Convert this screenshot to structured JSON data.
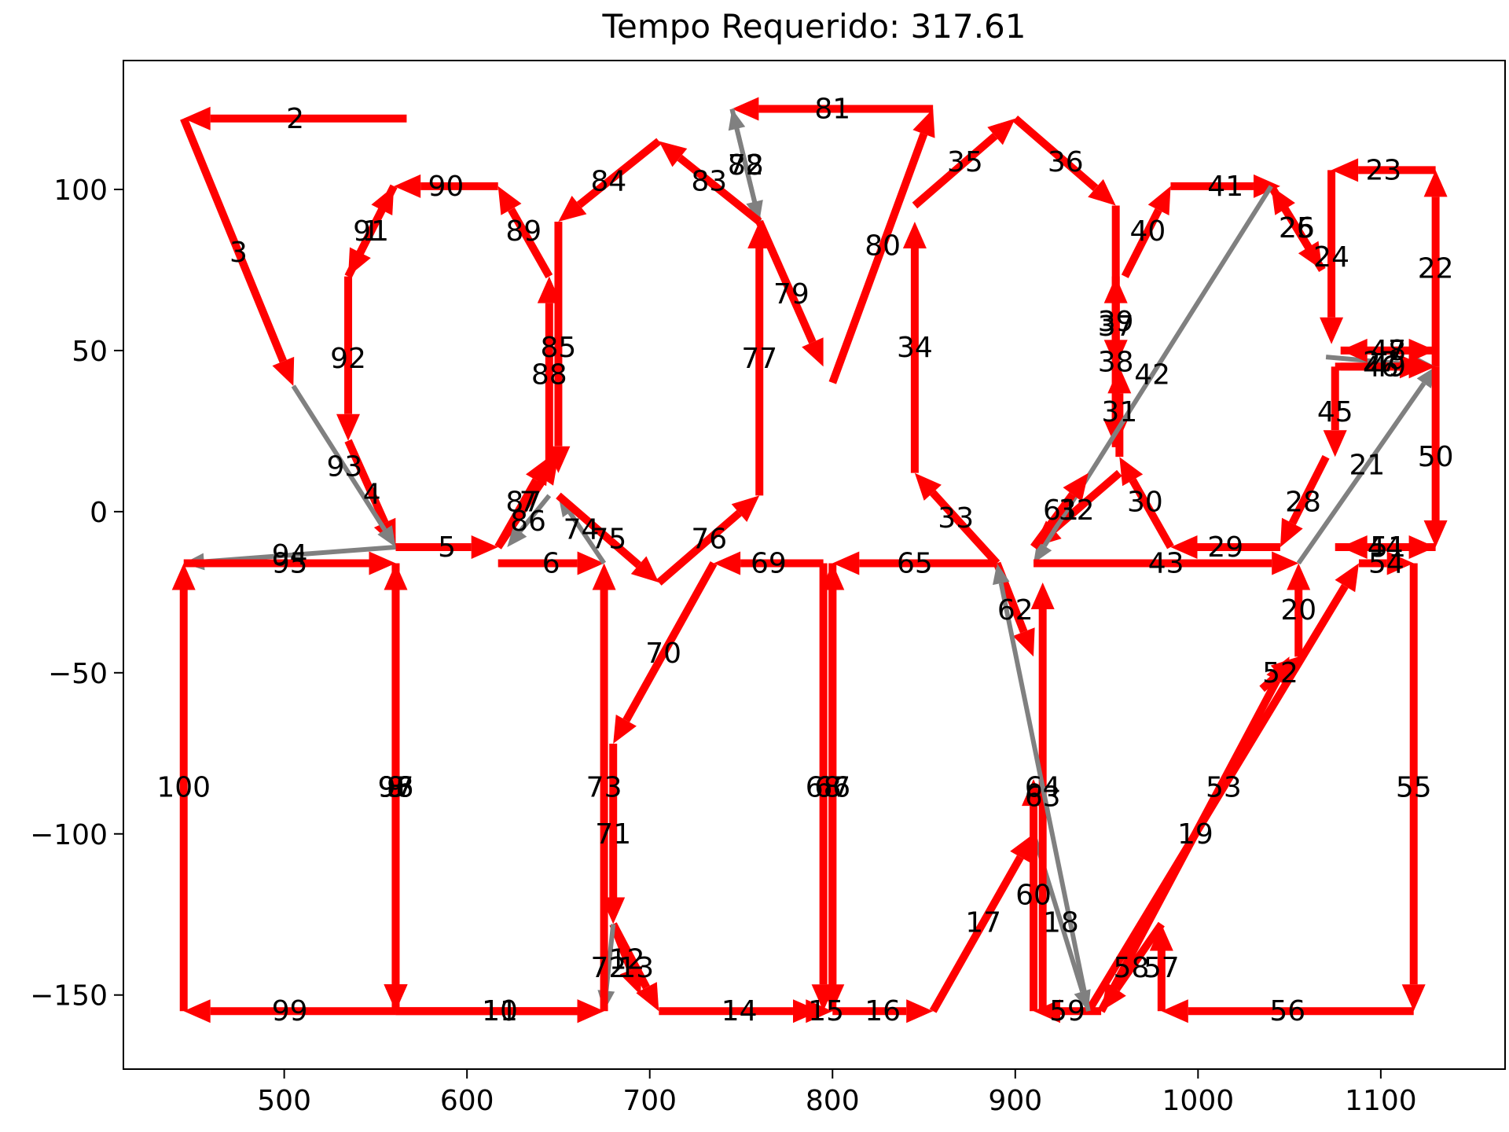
{
  "chart_data": {
    "type": "line",
    "title": "Tempo Requerido: 317.61",
    "xlabel": "",
    "ylabel": "",
    "xlim": [
      412,
      1168
    ],
    "ylim": [
      -173,
      140
    ],
    "x_ticks": [
      500,
      600,
      700,
      800,
      900,
      1000,
      1100
    ],
    "y_ticks": [
      -150,
      -100,
      -50,
      0,
      50,
      100
    ],
    "x_tick_labels": [
      "500",
      "600",
      "700",
      "800",
      "900",
      "1000",
      "1100"
    ],
    "y_tick_labels": [
      "−150",
      "−100",
      "−50",
      "0",
      "50",
      "100"
    ],
    "grid": false,
    "legend": "none",
    "colors": {
      "cut": "#ff0000",
      "travel": "#808080"
    },
    "segments": [
      {
        "label": "1",
        "x1": 535,
        "y1": 73,
        "x2": 560,
        "y2": 101,
        "kind": "cut"
      },
      {
        "label": "2",
        "x1": 567,
        "y1": 122,
        "x2": 445,
        "y2": 122,
        "kind": "cut"
      },
      {
        "label": "3",
        "x1": 445,
        "y1": 122,
        "x2": 505,
        "y2": 39,
        "kind": "cut"
      },
      {
        "label": "4",
        "x1": 535,
        "y1": 22,
        "x2": 561,
        "y2": -11,
        "kind": "cut"
      },
      {
        "label": "5",
        "x1": 561,
        "y1": -11,
        "x2": 617,
        "y2": -11,
        "kind": "cut"
      },
      {
        "label": "6",
        "x1": 617,
        "y1": -16,
        "x2": 675,
        "y2": -16,
        "kind": "cut"
      },
      {
        "label": "7",
        "x1": 617,
        "y1": -11,
        "x2": 650,
        "y2": 17,
        "kind": "cut"
      },
      {
        "label": "8",
        "x1": 561,
        "y1": -16,
        "x2": 561,
        "y2": -155,
        "kind": "cut"
      },
      {
        "label": "9",
        "x1": 561,
        "y1": -16,
        "x2": 561,
        "y2": -155,
        "kind": "cut"
      },
      {
        "label": "10",
        "x1": 561,
        "y1": -155,
        "x2": 675,
        "y2": -155,
        "kind": "cut"
      },
      {
        "label": "11",
        "x1": 561,
        "y1": -155,
        "x2": 675,
        "y2": -155,
        "kind": "cut"
      },
      {
        "label": "12",
        "x1": 680,
        "y1": -128,
        "x2": 695,
        "y2": -150,
        "kind": "cut"
      },
      {
        "label": "13",
        "x1": 680,
        "y1": -128,
        "x2": 705,
        "y2": -155,
        "kind": "cut"
      },
      {
        "label": "14",
        "x1": 705,
        "y1": -155,
        "x2": 793,
        "y2": -155,
        "kind": "cut"
      },
      {
        "label": "15",
        "x1": 793,
        "y1": -155,
        "x2": 800,
        "y2": -155,
        "kind": "cut"
      },
      {
        "label": "16",
        "x1": 800,
        "y1": -155,
        "x2": 855,
        "y2": -155,
        "kind": "cut"
      },
      {
        "label": "17",
        "x1": 855,
        "y1": -155,
        "x2": 910,
        "y2": -100,
        "kind": "cut"
      },
      {
        "label": "18",
        "x1": 910,
        "y1": -100,
        "x2": 940,
        "y2": -155,
        "kind": "travel"
      },
      {
        "label": "19",
        "x1": 947,
        "y1": -155,
        "x2": 1050,
        "y2": -45,
        "kind": "cut"
      },
      {
        "label": "20",
        "x1": 1055,
        "y1": -45,
        "x2": 1055,
        "y2": -16,
        "kind": "cut"
      },
      {
        "label": "21",
        "x1": 1055,
        "y1": -16,
        "x2": 1130,
        "y2": 45,
        "kind": "travel"
      },
      {
        "label": "22",
        "x1": 1130,
        "y1": 45,
        "x2": 1130,
        "y2": 106,
        "kind": "cut"
      },
      {
        "label": "23",
        "x1": 1130,
        "y1": 106,
        "x2": 1073,
        "y2": 106,
        "kind": "cut"
      },
      {
        "label": "24",
        "x1": 1073,
        "y1": 106,
        "x2": 1073,
        "y2": 52,
        "kind": "cut"
      },
      {
        "label": "25",
        "x1": 1068,
        "y1": 75,
        "x2": 1040,
        "y2": 101,
        "kind": "cut"
      },
      {
        "label": "26",
        "x1": 1040,
        "y1": 101,
        "x2": 1068,
        "y2": 75,
        "kind": "cut"
      },
      {
        "label": "27",
        "x1": 1070,
        "y1": 48,
        "x2": 1130,
        "y2": 45,
        "kind": "travel"
      },
      {
        "label": "28",
        "x1": 1070,
        "y1": 17,
        "x2": 1045,
        "y2": -11,
        "kind": "cut"
      },
      {
        "label": "29",
        "x1": 1045,
        "y1": -11,
        "x2": 985,
        "y2": -11,
        "kind": "cut"
      },
      {
        "label": "30",
        "x1": 985,
        "y1": -11,
        "x2": 957,
        "y2": 17,
        "kind": "cut"
      },
      {
        "label": "31",
        "x1": 957,
        "y1": 17,
        "x2": 957,
        "y2": 45,
        "kind": "cut"
      },
      {
        "label": "32",
        "x1": 957,
        "y1": 12,
        "x2": 910,
        "y2": -11,
        "kind": "cut"
      },
      {
        "label": "33",
        "x1": 890,
        "y1": -16,
        "x2": 845,
        "y2": 12,
        "kind": "cut"
      },
      {
        "label": "34",
        "x1": 845,
        "y1": 12,
        "x2": 845,
        "y2": 90,
        "kind": "cut"
      },
      {
        "label": "35",
        "x1": 845,
        "y1": 95,
        "x2": 900,
        "y2": 122,
        "kind": "cut"
      },
      {
        "label": "36",
        "x1": 900,
        "y1": 122,
        "x2": 955,
        "y2": 95,
        "kind": "cut"
      },
      {
        "label": "37",
        "x1": 955,
        "y1": 95,
        "x2": 955,
        "y2": 20,
        "kind": "cut"
      },
      {
        "label": "38",
        "x1": 955,
        "y1": 20,
        "x2": 955,
        "y2": 73,
        "kind": "cut"
      },
      {
        "label": "39",
        "x1": 955,
        "y1": 73,
        "x2": 955,
        "y2": 45,
        "kind": "cut"
      },
      {
        "label": "40",
        "x1": 960,
        "y1": 73,
        "x2": 985,
        "y2": 101,
        "kind": "cut"
      },
      {
        "label": "41",
        "x1": 985,
        "y1": 101,
        "x2": 1045,
        "y2": 101,
        "kind": "cut"
      },
      {
        "label": "42",
        "x1": 1040,
        "y1": 101,
        "x2": 910,
        "y2": -16,
        "kind": "travel"
      },
      {
        "label": "43",
        "x1": 910,
        "y1": -16,
        "x2": 1055,
        "y2": -16,
        "kind": "cut"
      },
      {
        "label": "44",
        "x1": 1075,
        "y1": -11,
        "x2": 1130,
        "y2": -11,
        "kind": "cut"
      },
      {
        "label": "45",
        "x1": 1075,
        "y1": 45,
        "x2": 1075,
        "y2": 17,
        "kind": "cut"
      },
      {
        "label": "46",
        "x1": 1075,
        "y1": 45,
        "x2": 1125,
        "y2": 45,
        "kind": "cut"
      },
      {
        "label": "47",
        "x1": 1130,
        "y1": 50,
        "x2": 1078,
        "y2": 50,
        "kind": "cut"
      },
      {
        "label": "48",
        "x1": 1078,
        "y1": 50,
        "x2": 1130,
        "y2": 50,
        "kind": "cut"
      },
      {
        "label": "49",
        "x1": 1078,
        "y1": 45,
        "x2": 1130,
        "y2": 45,
        "kind": "cut"
      },
      {
        "label": "50",
        "x1": 1130,
        "y1": 45,
        "x2": 1130,
        "y2": -11,
        "kind": "cut"
      },
      {
        "label": "51",
        "x1": 1130,
        "y1": -11,
        "x2": 1078,
        "y2": -11,
        "kind": "cut"
      },
      {
        "label": "52",
        "x1": 1035,
        "y1": -55,
        "x2": 1055,
        "y2": -45,
        "kind": "cut"
      },
      {
        "label": "53",
        "x1": 940,
        "y1": -155,
        "x2": 1088,
        "y2": -16,
        "kind": "cut"
      },
      {
        "label": "54",
        "x1": 1088,
        "y1": -16,
        "x2": 1118,
        "y2": -16,
        "kind": "cut"
      },
      {
        "label": "55",
        "x1": 1118,
        "y1": -16,
        "x2": 1118,
        "y2": -155,
        "kind": "cut"
      },
      {
        "label": "56",
        "x1": 1118,
        "y1": -155,
        "x2": 980,
        "y2": -155,
        "kind": "cut"
      },
      {
        "label": "57",
        "x1": 980,
        "y1": -155,
        "x2": 980,
        "y2": -128,
        "kind": "cut"
      },
      {
        "label": "58",
        "x1": 980,
        "y1": -128,
        "x2": 947,
        "y2": -155,
        "kind": "cut"
      },
      {
        "label": "59",
        "x1": 947,
        "y1": -155,
        "x2": 910,
        "y2": -155,
        "kind": "cut"
      },
      {
        "label": "60",
        "x1": 910,
        "y1": -155,
        "x2": 910,
        "y2": -83,
        "kind": "cut"
      },
      {
        "label": "61",
        "x1": 910,
        "y1": -11,
        "x2": 940,
        "y2": 12,
        "kind": "cut"
      },
      {
        "label": "62",
        "x1": 890,
        "y1": -16,
        "x2": 910,
        "y2": -45,
        "kind": "cut"
      },
      {
        "label": "63",
        "x1": 915,
        "y1": -155,
        "x2": 915,
        "y2": -22,
        "kind": "cut"
      },
      {
        "label": "64",
        "x1": 940,
        "y1": -155,
        "x2": 890,
        "y2": -16,
        "kind": "travel"
      },
      {
        "label": "65",
        "x1": 890,
        "y1": -16,
        "x2": 800,
        "y2": -16,
        "kind": "cut"
      },
      {
        "label": "66",
        "x1": 800,
        "y1": -16,
        "x2": 800,
        "y2": -155,
        "kind": "cut"
      },
      {
        "label": "67",
        "x1": 800,
        "y1": -155,
        "x2": 800,
        "y2": -16,
        "kind": "cut"
      },
      {
        "label": "68",
        "x1": 795,
        "y1": -16,
        "x2": 795,
        "y2": -155,
        "kind": "cut"
      },
      {
        "label": "69",
        "x1": 795,
        "y1": -16,
        "x2": 735,
        "y2": -16,
        "kind": "cut"
      },
      {
        "label": "70",
        "x1": 735,
        "y1": -16,
        "x2": 680,
        "y2": -72,
        "kind": "cut"
      },
      {
        "label": "71",
        "x1": 680,
        "y1": -72,
        "x2": 680,
        "y2": -128,
        "kind": "cut"
      },
      {
        "label": "72",
        "x1": 680,
        "y1": -128,
        "x2": 675,
        "y2": -155,
        "kind": "travel"
      },
      {
        "label": "73",
        "x1": 675,
        "y1": -155,
        "x2": 675,
        "y2": -16,
        "kind": "cut"
      },
      {
        "label": "74",
        "x1": 675,
        "y1": -16,
        "x2": 650,
        "y2": 5,
        "kind": "travel"
      },
      {
        "label": "75",
        "x1": 650,
        "y1": 5,
        "x2": 705,
        "y2": -22,
        "kind": "cut"
      },
      {
        "label": "76",
        "x1": 705,
        "y1": -22,
        "x2": 760,
        "y2": 5,
        "kind": "cut"
      },
      {
        "label": "77",
        "x1": 760,
        "y1": 5,
        "x2": 760,
        "y2": 90,
        "kind": "cut"
      },
      {
        "label": "78",
        "x1": 760,
        "y1": 90,
        "x2": 745,
        "y2": 125,
        "kind": "travel"
      },
      {
        "label": "79",
        "x1": 760,
        "y1": 90,
        "x2": 795,
        "y2": 45,
        "kind": "cut"
      },
      {
        "label": "80",
        "x1": 800,
        "y1": 40,
        "x2": 855,
        "y2": 125,
        "kind": "cut"
      },
      {
        "label": "81",
        "x1": 855,
        "y1": 125,
        "x2": 745,
        "y2": 125,
        "kind": "cut"
      },
      {
        "label": "82",
        "x1": 745,
        "y1": 125,
        "x2": 760,
        "y2": 90,
        "kind": "travel"
      },
      {
        "label": "83",
        "x1": 760,
        "y1": 90,
        "x2": 705,
        "y2": 115,
        "kind": "cut"
      },
      {
        "label": "84",
        "x1": 705,
        "y1": 115,
        "x2": 650,
        "y2": 90,
        "kind": "cut"
      },
      {
        "label": "85",
        "x1": 650,
        "y1": 90,
        "x2": 650,
        "y2": 12,
        "kind": "cut"
      },
      {
        "label": "86",
        "x1": 645,
        "y1": 5,
        "x2": 622,
        "y2": -11,
        "kind": "travel"
      },
      {
        "label": "87",
        "x1": 617,
        "y1": -11,
        "x2": 645,
        "y2": 17,
        "kind": "cut"
      },
      {
        "label": "88",
        "x1": 645,
        "y1": 12,
        "x2": 645,
        "y2": 73,
        "kind": "cut"
      },
      {
        "label": "89",
        "x1": 645,
        "y1": 73,
        "x2": 617,
        "y2": 101,
        "kind": "cut"
      },
      {
        "label": "90",
        "x1": 617,
        "y1": 101,
        "x2": 560,
        "y2": 101,
        "kind": "cut"
      },
      {
        "label": "91",
        "x1": 560,
        "y1": 101,
        "x2": 535,
        "y2": 73,
        "kind": "cut"
      },
      {
        "label": "92",
        "x1": 535,
        "y1": 73,
        "x2": 535,
        "y2": 22,
        "kind": "cut"
      },
      {
        "label": "93",
        "x1": 505,
        "y1": 39,
        "x2": 561,
        "y2": -11,
        "kind": "travel"
      },
      {
        "label": "94",
        "x1": 561,
        "y1": -11,
        "x2": 445,
        "y2": -16,
        "kind": "travel"
      },
      {
        "label": "95",
        "x1": 445,
        "y1": -16,
        "x2": 561,
        "y2": -16,
        "kind": "cut"
      },
      {
        "label": "96",
        "x1": 561,
        "y1": -16,
        "x2": 561,
        "y2": -155,
        "kind": "cut"
      },
      {
        "label": "97",
        "x1": 561,
        "y1": -155,
        "x2": 561,
        "y2": -16,
        "kind": "cut"
      },
      {
        "label": "98",
        "x1": 561,
        "y1": -16,
        "x2": 561,
        "y2": -155,
        "kind": "cut"
      },
      {
        "label": "99",
        "x1": 561,
        "y1": -155,
        "x2": 445,
        "y2": -155,
        "kind": "cut"
      },
      {
        "label": "100",
        "x1": 445,
        "y1": -155,
        "x2": 445,
        "y2": -16,
        "kind": "cut"
      }
    ]
  }
}
